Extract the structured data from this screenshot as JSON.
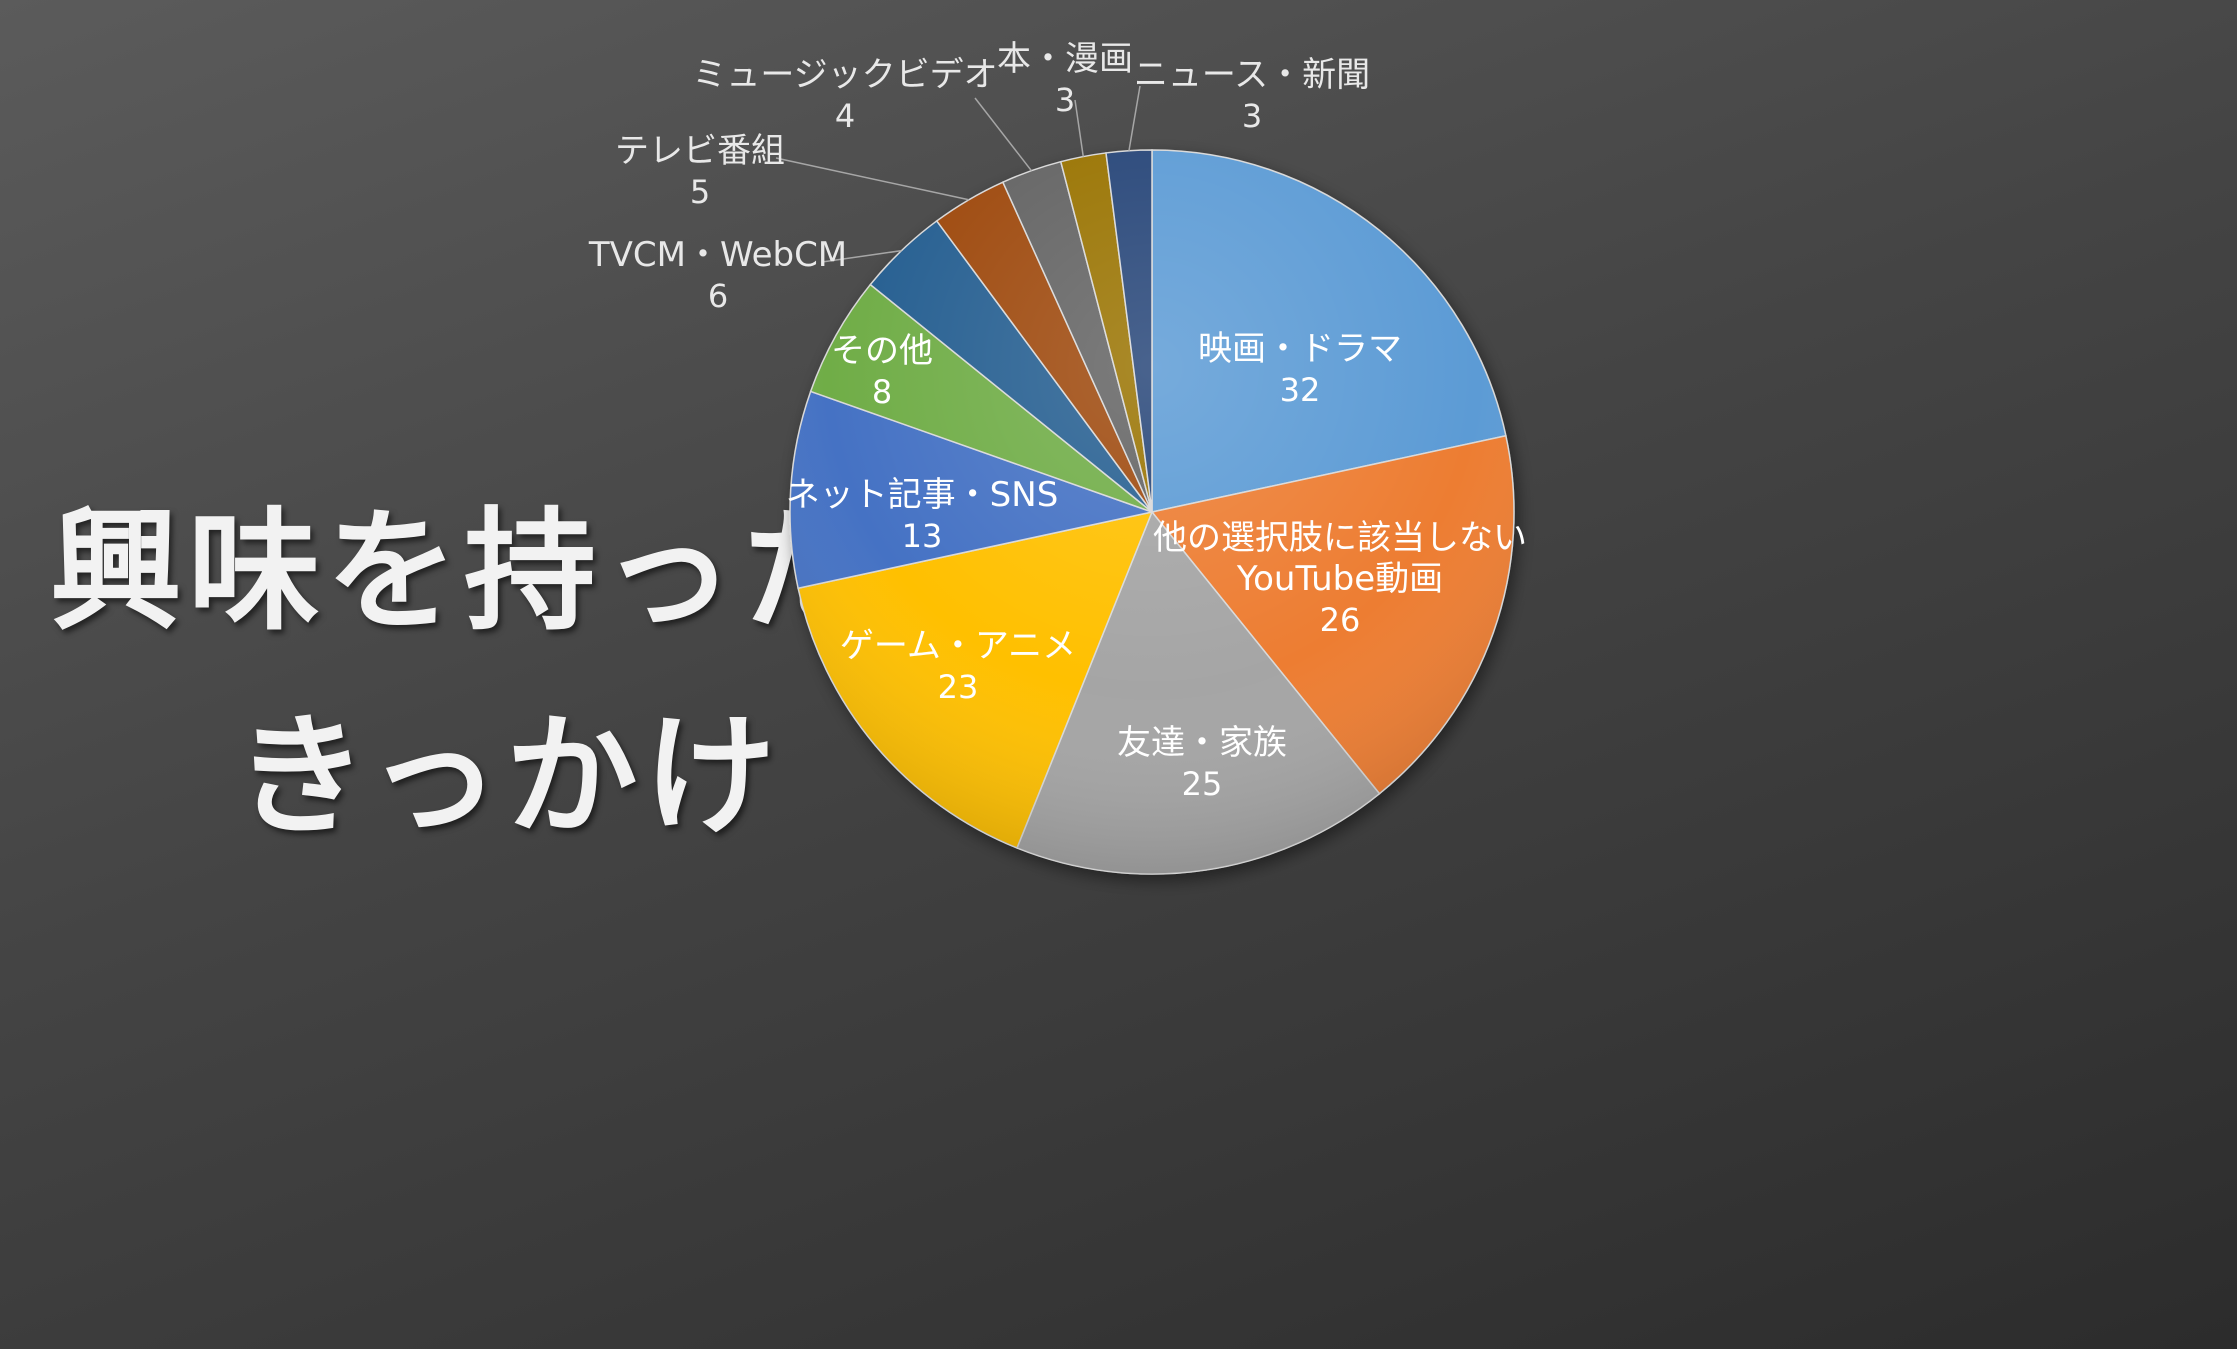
{
  "title": {
    "line1": "興味を持った",
    "line2": "きっかけ"
  },
  "chart_data": {
    "type": "pie",
    "start_angle_deg": 0,
    "direction": "clockwise",
    "slices": [
      {
        "label": "映画・ドラマ",
        "value": 32,
        "color": "#5b9bd5"
      },
      {
        "label": "他の選択肢に該当しない\nYouTube動画",
        "value": 26,
        "color": "#ed7d31"
      },
      {
        "label": "友達・家族",
        "value": 25,
        "color": "#a5a5a5"
      },
      {
        "label": "ゲーム・アニメ",
        "value": 23,
        "color": "#ffc000"
      },
      {
        "label": "ネット記事・SNS",
        "value": 13,
        "color": "#4472c4"
      },
      {
        "label": "その他",
        "value": 8,
        "color": "#70ad47"
      },
      {
        "label": "TVCM・WebCM",
        "value": 6,
        "color": "#255e91"
      },
      {
        "label": "テレビ番組",
        "value": 5,
        "color": "#9e480e"
      },
      {
        "label": "ミュージックビデオ",
        "value": 4,
        "color": "#636363"
      },
      {
        "label": "本・漫画",
        "value": 3,
        "color": "#997300"
      },
      {
        "label": "ニュース・新聞",
        "value": 3,
        "color": "#264478"
      }
    ],
    "legend": "none",
    "data_labels": "category name and value"
  }
}
